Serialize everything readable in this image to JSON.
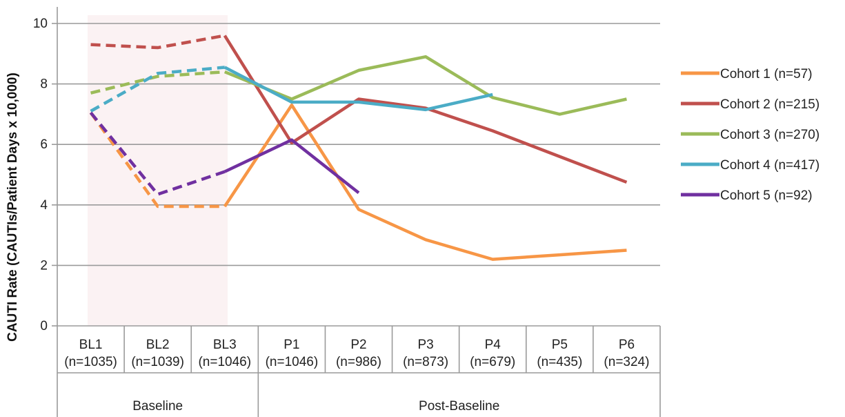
{
  "chart_data": {
    "type": "line",
    "ylabel": "CAUTI Rate (CAUTIs/Patient Days x 10,000)",
    "ylim": [
      0,
      10
    ],
    "yticks": [
      0,
      2,
      4,
      6,
      8,
      10
    ],
    "grid": true,
    "legend_position": "right",
    "categories": [
      {
        "label": "BL1",
        "sub": "(n=1035)"
      },
      {
        "label": "BL2",
        "sub": "(n=1039)"
      },
      {
        "label": "BL3",
        "sub": "(n=1046)"
      },
      {
        "label": "P1",
        "sub": "(n=1046)"
      },
      {
        "label": "P2",
        "sub": "(n=986)"
      },
      {
        "label": "P3",
        "sub": "(n=873)"
      },
      {
        "label": "P4",
        "sub": "(n=679)"
      },
      {
        "label": "P5",
        "sub": "(n=435)"
      },
      {
        "label": "P6",
        "sub": "(n=324)"
      }
    ],
    "groups": [
      {
        "label": "Baseline",
        "start": 0,
        "end": 2
      },
      {
        "label": "Post-Baseline",
        "start": 3,
        "end": 8
      }
    ],
    "baseline_dashed_through_index": 2,
    "series": [
      {
        "name": "Cohort 1 (n=57)",
        "color": "#f79646",
        "values": [
          7.05,
          3.95,
          3.95,
          7.3,
          3.85,
          2.85,
          2.2,
          2.35,
          2.5
        ]
      },
      {
        "name": "Cohort 2 (n=215)",
        "color": "#c0504d",
        "values": [
          9.3,
          9.2,
          9.6,
          6.05,
          7.5,
          7.2,
          6.45,
          5.6,
          4.75
        ]
      },
      {
        "name": "Cohort 3 (n=270)",
        "color": "#9bbb59",
        "values": [
          7.7,
          8.25,
          8.4,
          7.5,
          8.45,
          8.9,
          7.55,
          7.0,
          7.5
        ]
      },
      {
        "name": "Cohort 4 (n=417)",
        "color": "#4bacc6",
        "values": [
          7.1,
          8.35,
          8.55,
          7.4,
          7.4,
          7.15,
          7.65,
          null,
          null
        ]
      },
      {
        "name": "Cohort 5 (n=92)",
        "color": "#7030a0",
        "values": [
          7.05,
          4.35,
          5.1,
          6.15,
          4.4,
          null,
          null,
          null,
          null
        ]
      }
    ]
  }
}
